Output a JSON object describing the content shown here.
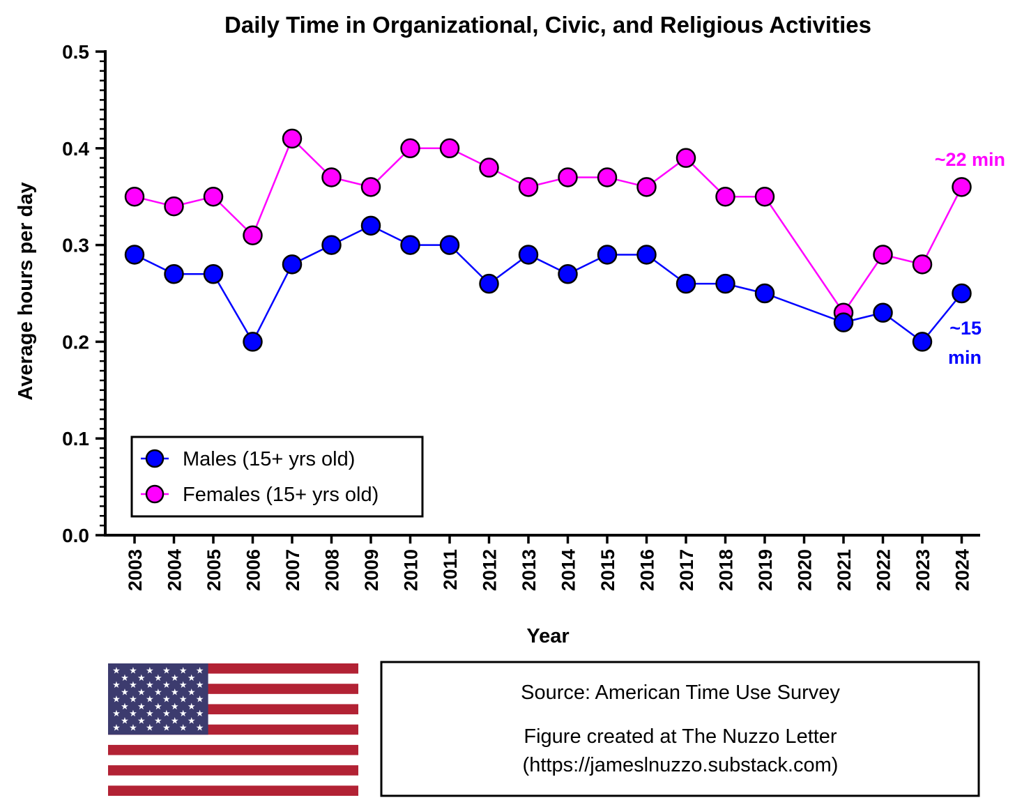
{
  "chart_data": {
    "type": "line",
    "title": "Daily Time in Organizational, Civic, and Religious Activities",
    "xlabel": "Year",
    "ylabel": "Average hours per day",
    "ylim": [
      0,
      0.5
    ],
    "yticks": [
      "0.0",
      "0.1",
      "0.2",
      "0.3",
      "0.4",
      "0.5"
    ],
    "categories": [
      "2003",
      "2004",
      "2005",
      "2006",
      "2007",
      "2008",
      "2009",
      "2010",
      "2011",
      "2012",
      "2013",
      "2014",
      "2015",
      "2016",
      "2017",
      "2018",
      "2019",
      "2020",
      "2021",
      "2022",
      "2023",
      "2024"
    ],
    "series": [
      {
        "name": "Males (15+ yrs old)",
        "color": "#0000ff",
        "values": [
          0.29,
          0.27,
          0.27,
          0.2,
          0.28,
          0.3,
          0.32,
          0.3,
          0.3,
          0.26,
          0.29,
          0.27,
          0.29,
          0.29,
          0.26,
          0.26,
          0.25,
          null,
          0.22,
          0.23,
          0.2,
          0.25
        ]
      },
      {
        "name": "Females (15+ yrs old)",
        "color": "#ff00ff",
        "values": [
          0.35,
          0.34,
          0.35,
          0.31,
          0.41,
          0.37,
          0.36,
          0.4,
          0.4,
          0.38,
          0.36,
          0.37,
          0.37,
          0.36,
          0.39,
          0.35,
          0.35,
          null,
          0.23,
          0.29,
          0.28,
          0.36
        ]
      }
    ],
    "annotations": {
      "females_end": "~22 min",
      "males_end_line1": "~15",
      "males_end_line2": "min"
    },
    "legend_position": "bottom-left"
  },
  "source_box": {
    "line1": "Source: American Time Use Survey",
    "line2": "Figure created at The Nuzzo Letter",
    "line3": "(https://jameslnuzzo.substack.com)"
  },
  "flag": {
    "name": "us-flag",
    "colors": {
      "red": "#b22234",
      "blue": "#3c3b6e",
      "white": "#ffffff"
    }
  }
}
